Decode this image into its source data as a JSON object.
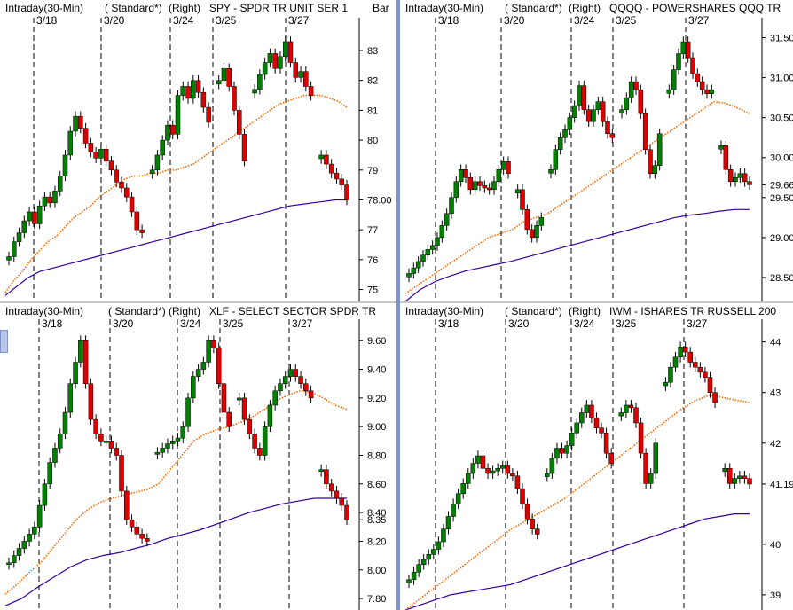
{
  "colors": {
    "up": "#008000",
    "down": "#dd0000",
    "wick": "#000000",
    "ma_fast": "#ff6a00",
    "ma_slow": "#330099",
    "session_line": "#000000",
    "divider": "#7f93c9"
  },
  "chart_data": [
    {
      "type": "candlestick",
      "header": {
        "interval": "Intraday(30-Min)",
        "style": "( Standard*)",
        "axis": "(Right)",
        "symbol": "SPY - SPDR TR UNIT SER 1",
        "mode": "Bar"
      },
      "dates": [
        "3/18",
        "3/20",
        "3/24",
        "3/25",
        "3/27"
      ],
      "y_ticks": [
        "75",
        "76",
        "77",
        "78.00",
        "79",
        "80",
        "81",
        "82",
        "83"
      ],
      "ylim": [
        74.6,
        84.1
      ],
      "last_value": "78.00",
      "closes": [
        76.1,
        76.6,
        76.9,
        77.3,
        77.6,
        77.2,
        77.8,
        78.1,
        77.9,
        78.3,
        78.8,
        79.5,
        80.3,
        80.8,
        80.4,
        79.9,
        79.6,
        79.4,
        79.7,
        79.3,
        79.0,
        78.6,
        78.4,
        78.1,
        77.6,
        77.0,
        76.9,
        null,
        79.0,
        79.5,
        80.0,
        80.5,
        80.2,
        81.5,
        81.8,
        81.4,
        82.0,
        81.6,
        81.1,
        80.6,
        null,
        82.0,
        82.4,
        81.8,
        81.0,
        80.2,
        79.3,
        null,
        81.7,
        82.2,
        82.6,
        82.9,
        82.4,
        82.8,
        83.3,
        82.6,
        82.1,
        82.3,
        81.8,
        81.5,
        null,
        79.5,
        79.2,
        78.9,
        78.7,
        78.5,
        78.0
      ],
      "ma_fast": [
        74.9,
        75.3,
        75.6,
        76.0,
        76.3,
        76.6,
        76.8,
        77.1,
        77.4,
        77.6,
        77.8,
        78.1,
        78.3,
        78.5,
        78.7,
        78.8,
        78.8,
        78.9,
        78.9,
        79.0,
        79.0,
        79.1,
        79.2,
        79.4,
        79.6,
        79.8,
        80.0,
        80.2,
        80.4,
        80.6,
        80.8,
        81.0,
        81.2,
        81.3,
        81.4,
        81.5,
        81.5,
        81.5,
        81.4,
        81.3,
        81.1
      ],
      "ma_slow": [
        74.8,
        75.1,
        75.4,
        75.6,
        75.7,
        75.8,
        75.9,
        76.0,
        76.1,
        76.2,
        76.3,
        76.4,
        76.5,
        76.6,
        76.7,
        76.8,
        76.9,
        77.0,
        77.1,
        77.2,
        77.3,
        77.4,
        77.5,
        77.6,
        77.7,
        77.8,
        77.85,
        77.9,
        77.95,
        78.0,
        78.0
      ]
    },
    {
      "type": "candlestick",
      "header": {
        "interval": "Intraday(30-Min)",
        "style": "( Standard*)",
        "axis": "(Right)",
        "symbol": "QQQQ - POWERSHARES QQQ TR"
      },
      "dates": [
        "3/18",
        "3/20",
        "3/24",
        "3/25",
        "3/27"
      ],
      "y_ticks": [
        "28.50",
        "29.00",
        "29.50",
        "29.66",
        "30.00",
        "30.50",
        "31.00",
        "31.50"
      ],
      "ylim": [
        28.2,
        31.75
      ],
      "last_value": "29.66",
      "closes": [
        28.55,
        28.62,
        28.7,
        28.78,
        28.85,
        28.9,
        29.0,
        29.15,
        29.3,
        29.5,
        29.7,
        29.85,
        29.75,
        29.6,
        29.7,
        29.65,
        29.62,
        29.6,
        29.7,
        29.85,
        29.95,
        29.8,
        null,
        29.6,
        29.35,
        29.1,
        29.0,
        29.15,
        29.25,
        null,
        29.85,
        30.1,
        30.25,
        30.35,
        30.5,
        30.65,
        30.9,
        30.6,
        30.45,
        30.6,
        30.7,
        30.45,
        30.3,
        30.25,
        null,
        30.6,
        30.75,
        30.95,
        30.85,
        30.55,
        30.1,
        29.8,
        29.9,
        30.3,
        null,
        30.85,
        31.1,
        31.3,
        31.45,
        31.25,
        31.05,
        30.95,
        30.85,
        30.8,
        30.85,
        null,
        30.15,
        29.85,
        29.7,
        29.75,
        29.8,
        29.7,
        29.66
      ],
      "ma_fast": [
        28.3,
        28.4,
        28.5,
        28.6,
        28.7,
        28.8,
        28.9,
        29.0,
        29.05,
        29.1,
        29.2,
        29.25,
        29.3,
        29.4,
        29.5,
        29.6,
        29.7,
        29.8,
        29.9,
        30.0,
        30.1,
        30.2,
        30.3,
        30.4,
        30.5,
        30.6,
        30.7,
        30.68,
        30.62,
        30.55
      ],
      "ma_slow": [
        28.2,
        28.35,
        28.45,
        28.52,
        28.58,
        28.62,
        28.66,
        28.7,
        28.75,
        28.8,
        28.85,
        28.9,
        28.95,
        29.0,
        29.05,
        29.1,
        29.15,
        29.2,
        29.25,
        29.28,
        29.3,
        29.33,
        29.35,
        29.35
      ]
    },
    {
      "type": "candlestick",
      "header": {
        "interval": "Intraday(30-Min)",
        "style": "( Standard*)",
        "axis": "(Right)",
        "symbol": "XLF - SELECT SECTOR SPDR TR"
      },
      "dates": [
        "3/18",
        "3/20",
        "3/24",
        "3/25",
        "3/27"
      ],
      "y_ticks": [
        "7.80",
        "8.00",
        "8.20",
        "8.35",
        "8.40",
        "8.60",
        "8.80",
        "9.00",
        "9.20",
        "9.40",
        "9.60"
      ],
      "ylim": [
        7.72,
        9.75
      ],
      "last_value": "8.35",
      "closes": [
        8.05,
        8.1,
        8.15,
        8.2,
        8.25,
        8.3,
        8.45,
        8.6,
        8.75,
        8.85,
        8.95,
        9.1,
        9.3,
        9.45,
        9.6,
        9.3,
        9.05,
        8.95,
        8.9,
        8.9,
        8.85,
        8.8,
        8.55,
        8.35,
        8.3,
        8.25,
        8.22,
        8.2,
        null,
        8.82,
        8.85,
        8.88,
        8.9,
        8.92,
        9.0,
        9.2,
        9.35,
        9.4,
        9.45,
        9.6,
        9.55,
        9.3,
        9.1,
        9.0,
        null,
        9.2,
        9.05,
        8.95,
        8.85,
        8.8,
        9.0,
        9.15,
        9.25,
        9.3,
        9.35,
        9.4,
        9.35,
        9.3,
        9.25,
        9.2,
        null,
        8.7,
        8.6,
        8.55,
        8.5,
        8.45,
        8.35
      ],
      "ma_fast": [
        7.83,
        7.9,
        7.98,
        8.05,
        8.15,
        8.25,
        8.35,
        8.42,
        8.47,
        8.5,
        8.52,
        8.54,
        8.56,
        8.6,
        8.7,
        8.8,
        8.9,
        8.95,
        8.98,
        9.0,
        9.03,
        9.07,
        9.12,
        9.18,
        9.22,
        9.25,
        9.24,
        9.2,
        9.15,
        9.12
      ],
      "ma_slow": [
        7.75,
        7.8,
        7.88,
        7.95,
        8.02,
        8.07,
        8.1,
        8.12,
        8.15,
        8.18,
        8.22,
        8.25,
        8.28,
        8.32,
        8.36,
        8.4,
        8.43,
        8.46,
        8.48,
        8.5,
        8.5,
        8.5
      ]
    },
    {
      "type": "candlestick",
      "header": {
        "interval": "Intraday(30-Min)",
        "style": "( Standard*)",
        "axis": "(Right)",
        "symbol": "IWM - ISHARES TR RUSSELL 200"
      },
      "dates": [
        "3/18",
        "3/20",
        "3/24",
        "3/25",
        "3/27"
      ],
      "y_ticks": [
        "39",
        "40",
        "41.19",
        "42",
        "43",
        "44"
      ],
      "ylim": [
        38.7,
        44.45
      ],
      "last_value": "41.19",
      "closes": [
        39.3,
        39.45,
        39.6,
        39.7,
        39.8,
        39.9,
        40.05,
        40.3,
        40.55,
        40.8,
        41.0,
        41.2,
        41.4,
        41.6,
        41.75,
        41.5,
        41.4,
        41.45,
        41.5,
        41.55,
        41.4,
        41.35,
        41.1,
        40.8,
        40.5,
        40.3,
        40.2,
        null,
        41.4,
        41.7,
        41.9,
        41.8,
        41.95,
        42.2,
        42.4,
        42.6,
        42.75,
        42.5,
        42.3,
        42.2,
        41.8,
        41.6,
        null,
        42.6,
        42.75,
        42.7,
        42.4,
        41.8,
        41.2,
        41.4,
        42.0,
        null,
        43.2,
        43.5,
        43.7,
        43.9,
        43.8,
        43.6,
        43.5,
        43.4,
        43.3,
        43.0,
        42.8,
        null,
        41.5,
        41.2,
        41.3,
        41.35,
        41.3,
        41.19
      ],
      "ma_fast": [
        38.7,
        38.9,
        39.1,
        39.3,
        39.5,
        39.7,
        39.9,
        40.1,
        40.3,
        40.45,
        40.6,
        40.75,
        40.9,
        41.1,
        41.3,
        41.5,
        41.7,
        41.9,
        42.1,
        42.3,
        42.5,
        42.7,
        42.85,
        42.95,
        42.9,
        42.85,
        42.8
      ],
      "ma_slow": [
        38.7,
        38.8,
        38.9,
        39.0,
        39.05,
        39.1,
        39.15,
        39.2,
        39.3,
        39.4,
        39.5,
        39.6,
        39.7,
        39.8,
        39.9,
        40.0,
        40.1,
        40.2,
        40.3,
        40.4,
        40.5,
        40.55,
        40.6,
        40.6
      ]
    }
  ]
}
